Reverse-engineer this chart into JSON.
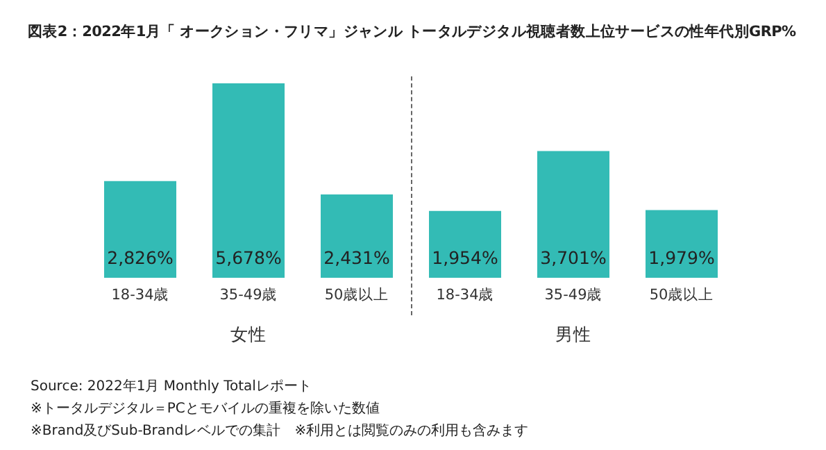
{
  "chart_data": {
    "type": "bar",
    "title": "図表2：2022年1月「 オークション・フリマ」ジャンル トータルデジタル視聴者数上位サービスの性年代別GRP%",
    "categories": [
      "18-34歳",
      "35-49歳",
      "50歳以上",
      "18-34歳",
      "35-49歳",
      "50歳以上"
    ],
    "values": [
      2826,
      5678,
      2431,
      1954,
      3701,
      1979
    ],
    "value_labels": [
      "2,826%",
      "5,678%",
      "2,431%",
      "1,954%",
      "3,701%",
      "1,979%"
    ],
    "color": "#33bbb5",
    "tick_labels": "x",
    "annotations": [
      "女性",
      "男性",
      "Source: 2022年1月 Monthly Totalレポート",
      "※トータルデジタル＝PCとモバイルの重複を除いた数値",
      "※Brand及びSub-Brandレベルでの集計　※利用とは閲覧のみの利用も含みます"
    ]
  }
}
